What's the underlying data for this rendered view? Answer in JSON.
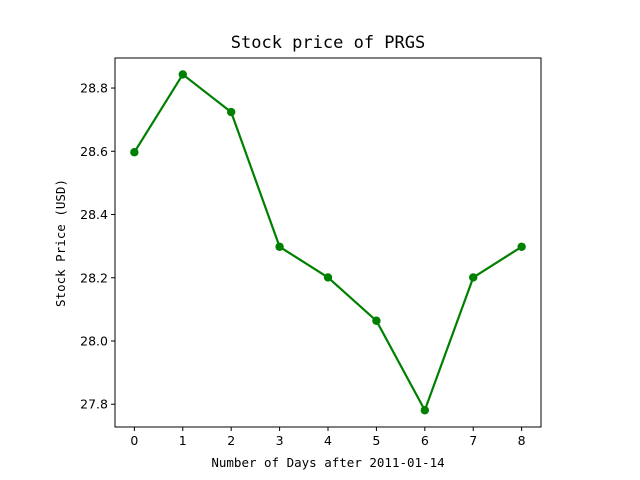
{
  "chart_data": {
    "type": "line",
    "title": "Stock price of PRGS",
    "xlabel": "Number of Days after 2011-01-14",
    "ylabel": "Stock Price (USD)",
    "x": [
      0,
      1,
      2,
      3,
      4,
      5,
      6,
      7,
      8
    ],
    "series": [
      {
        "values": [
          28.597,
          28.843,
          28.724,
          28.298,
          28.201,
          28.064,
          27.781,
          28.201,
          28.298
        ],
        "color": "#008000",
        "marker": "circle"
      }
    ],
    "xticks": [
      "0",
      "1",
      "2",
      "3",
      "4",
      "5",
      "6",
      "7",
      "8"
    ],
    "yticks": [
      "27.8",
      "28.0",
      "28.2",
      "28.4",
      "28.6",
      "28.8"
    ],
    "ytick_values": [
      27.8,
      28.0,
      28.2,
      28.4,
      28.6,
      28.8
    ],
    "xlim": [
      -0.4,
      8.4
    ],
    "ylim": [
      27.728,
      28.895
    ],
    "grid": false,
    "legend": "none"
  }
}
